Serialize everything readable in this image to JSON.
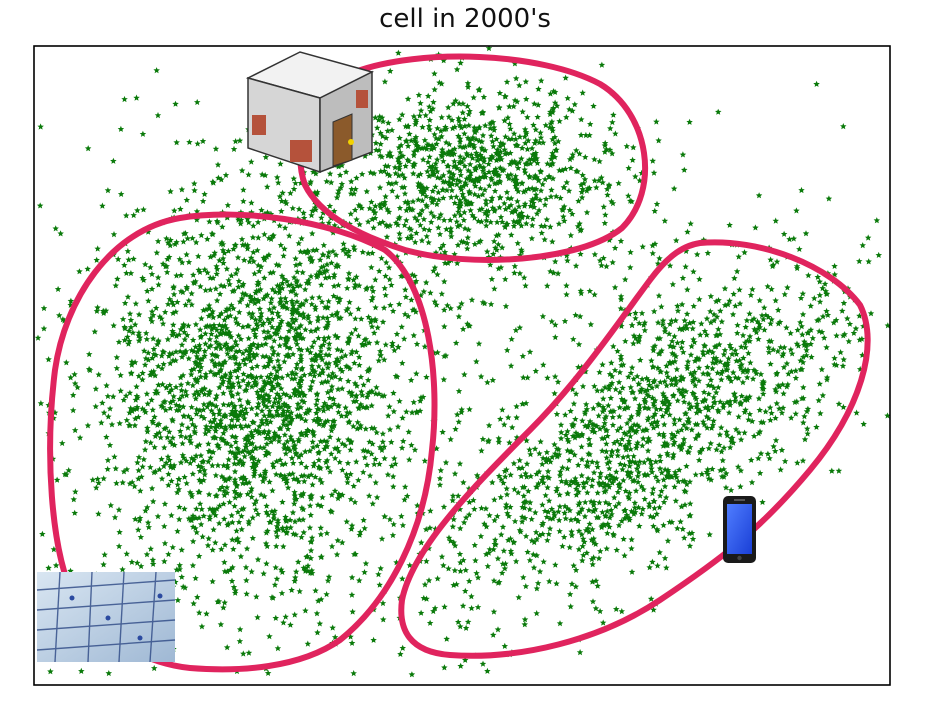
{
  "chart_data": {
    "type": "scatter",
    "title": "cell in 2000's",
    "xlabel": "",
    "ylabel": "",
    "grid": false,
    "marker": "star",
    "colors": {
      "points": "#0a7a0a",
      "cluster_outline": "#e0245e",
      "axes_frame": "#000000"
    },
    "clusters": [
      {
        "label_icon": "house-icon",
        "count": 900,
        "shape": "upper-middle"
      },
      {
        "label_icon": "plant-cell-micrograph-icon",
        "count": 2400,
        "shape": "left-large"
      },
      {
        "label_icon": "smartphone-icon",
        "count": 1500,
        "shape": "right-diagonal"
      }
    ]
  }
}
